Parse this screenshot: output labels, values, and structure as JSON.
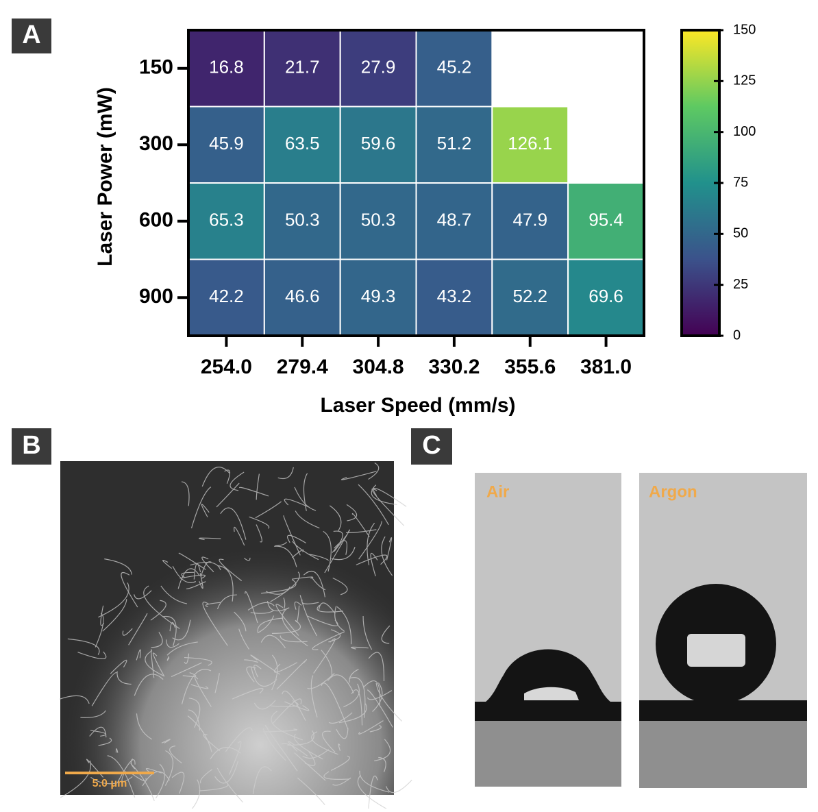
{
  "panels": {
    "a": "A",
    "b": "B",
    "c": "C"
  },
  "chart_data": {
    "type": "heatmap",
    "xlabel": "Laser Speed (mm/s)",
    "ylabel": "Laser Power (mW)",
    "x_categories": [
      "254.0",
      "279.4",
      "304.8",
      "330.2",
      "355.6",
      "381.0"
    ],
    "y_categories": [
      "150",
      "300",
      "600",
      "900"
    ],
    "values": [
      [
        16.8,
        21.7,
        27.9,
        45.2,
        null,
        null
      ],
      [
        45.9,
        63.5,
        59.6,
        51.2,
        126.1,
        null
      ],
      [
        65.3,
        50.3,
        50.3,
        48.7,
        47.9,
        95.4
      ],
      [
        42.2,
        46.6,
        49.3,
        43.2,
        52.2,
        69.6
      ]
    ],
    "colormap": "viridis",
    "colorbar": {
      "lim": [
        0,
        150
      ],
      "ticks": [
        0,
        25,
        50,
        75,
        100,
        125,
        150
      ]
    }
  },
  "sem_image": {
    "scale_bar": "5.0 μm"
  },
  "contact_angle": {
    "labels": [
      "Air",
      "Argon"
    ]
  }
}
